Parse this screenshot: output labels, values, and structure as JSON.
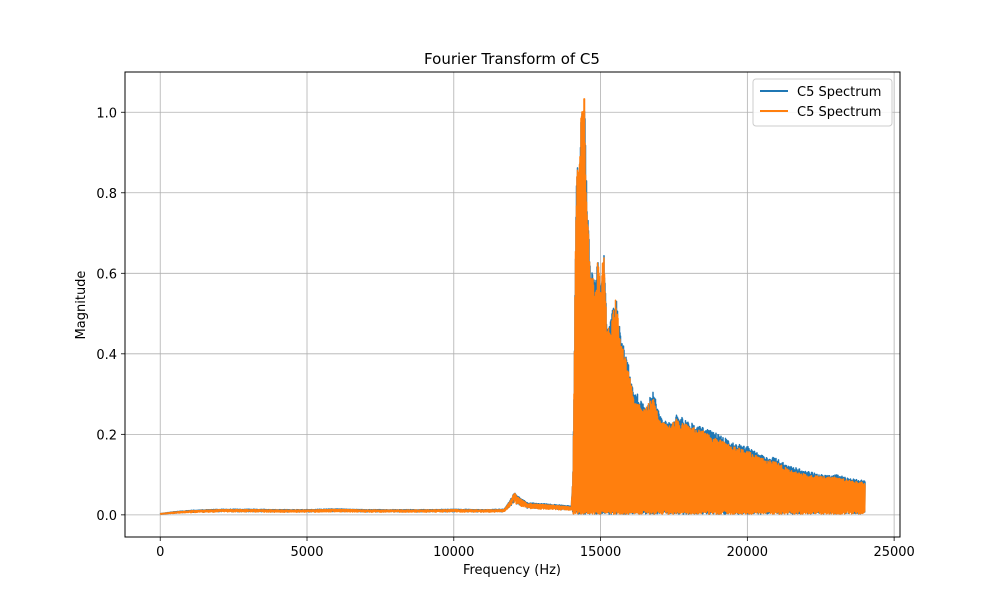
{
  "chart_data": {
    "type": "line",
    "title": "Fourier Transform of C5",
    "xlabel": "Frequency (Hz)",
    "ylabel": "Magnitude",
    "xlim": [
      -1200,
      25200
    ],
    "ylim": [
      -0.055,
      1.1
    ],
    "xticks": [
      0,
      5000,
      10000,
      15000,
      20000,
      25000
    ],
    "xtick_labels": [
      "0",
      "5000",
      "10000",
      "15000",
      "20000",
      "25000"
    ],
    "yticks": [
      0.0,
      0.2,
      0.4,
      0.6,
      0.8,
      1.0
    ],
    "ytick_labels": [
      "0.0",
      "0.2",
      "0.4",
      "0.6",
      "0.8",
      "1.0"
    ],
    "grid": true,
    "legend_position": "top-right",
    "series": [
      {
        "name": "C5 Spectrum",
        "color": "#1f77b4",
        "envelope": [
          [
            0,
            0.003
          ],
          [
            500,
            0.008
          ],
          [
            1000,
            0.011
          ],
          [
            2000,
            0.014
          ],
          [
            3000,
            0.014
          ],
          [
            4000,
            0.013
          ],
          [
            5000,
            0.013
          ],
          [
            6000,
            0.015
          ],
          [
            7000,
            0.013
          ],
          [
            8000,
            0.013
          ],
          [
            9000,
            0.013
          ],
          [
            10000,
            0.014
          ],
          [
            11000,
            0.013
          ],
          [
            11700,
            0.014
          ],
          [
            11900,
            0.035
          ],
          [
            12050,
            0.055
          ],
          [
            12200,
            0.045
          ],
          [
            12500,
            0.03
          ],
          [
            13000,
            0.028
          ],
          [
            13500,
            0.025
          ],
          [
            14000,
            0.022
          ],
          [
            14050,
            0.1
          ],
          [
            14100,
            0.4
          ],
          [
            14150,
            0.8
          ],
          [
            14200,
            0.91
          ],
          [
            14250,
            0.85
          ],
          [
            14350,
            1.045
          ],
          [
            14450,
            1.04
          ],
          [
            14500,
            0.86
          ],
          [
            14550,
            0.76
          ],
          [
            14650,
            0.62
          ],
          [
            14800,
            0.58
          ],
          [
            14900,
            0.65
          ],
          [
            15000,
            0.58
          ],
          [
            15100,
            0.66
          ],
          [
            15200,
            0.49
          ],
          [
            15300,
            0.47
          ],
          [
            15500,
            0.55
          ],
          [
            15700,
            0.44
          ],
          [
            15900,
            0.39
          ],
          [
            16100,
            0.31
          ],
          [
            16300,
            0.3
          ],
          [
            16500,
            0.27
          ],
          [
            16800,
            0.31
          ],
          [
            17000,
            0.25
          ],
          [
            17300,
            0.23
          ],
          [
            17600,
            0.25
          ],
          [
            18000,
            0.23
          ],
          [
            18500,
            0.22
          ],
          [
            19000,
            0.2
          ],
          [
            19500,
            0.18
          ],
          [
            20000,
            0.17
          ],
          [
            20500,
            0.15
          ],
          [
            21000,
            0.14
          ],
          [
            21500,
            0.12
          ],
          [
            22000,
            0.11
          ],
          [
            22500,
            0.1
          ],
          [
            23000,
            0.1
          ],
          [
            23500,
            0.09
          ],
          [
            24000,
            0.085
          ]
        ]
      },
      {
        "name": "C5 Spectrum",
        "color": "#ff7f0e",
        "envelope": [
          [
            0,
            0.003
          ],
          [
            500,
            0.007
          ],
          [
            1000,
            0.01
          ],
          [
            2000,
            0.013
          ],
          [
            3000,
            0.013
          ],
          [
            4000,
            0.012
          ],
          [
            5000,
            0.012
          ],
          [
            6000,
            0.014
          ],
          [
            7000,
            0.012
          ],
          [
            8000,
            0.012
          ],
          [
            9000,
            0.012
          ],
          [
            10000,
            0.013
          ],
          [
            11000,
            0.012
          ],
          [
            11700,
            0.013
          ],
          [
            11900,
            0.033
          ],
          [
            12050,
            0.055
          ],
          [
            12200,
            0.043
          ],
          [
            12500,
            0.028
          ],
          [
            13000,
            0.026
          ],
          [
            13500,
            0.023
          ],
          [
            14000,
            0.02
          ],
          [
            14050,
            0.1
          ],
          [
            14100,
            0.4
          ],
          [
            14150,
            0.8
          ],
          [
            14200,
            0.91
          ],
          [
            14250,
            0.84
          ],
          [
            14350,
            1.045
          ],
          [
            14450,
            1.04
          ],
          [
            14500,
            0.84
          ],
          [
            14550,
            0.74
          ],
          [
            14650,
            0.61
          ],
          [
            14800,
            0.57
          ],
          [
            14900,
            0.64
          ],
          [
            15000,
            0.57
          ],
          [
            15100,
            0.67
          ],
          [
            15200,
            0.48
          ],
          [
            15300,
            0.46
          ],
          [
            15500,
            0.54
          ],
          [
            15700,
            0.43
          ],
          [
            15900,
            0.38
          ],
          [
            16100,
            0.3
          ],
          [
            16300,
            0.29
          ],
          [
            16500,
            0.26
          ],
          [
            16800,
            0.3
          ],
          [
            17000,
            0.24
          ],
          [
            17300,
            0.22
          ],
          [
            17600,
            0.24
          ],
          [
            18000,
            0.22
          ],
          [
            18500,
            0.21
          ],
          [
            19000,
            0.19
          ],
          [
            19500,
            0.17
          ],
          [
            20000,
            0.16
          ],
          [
            20500,
            0.14
          ],
          [
            21000,
            0.13
          ],
          [
            21500,
            0.11
          ],
          [
            22000,
            0.1
          ],
          [
            22500,
            0.095
          ],
          [
            23000,
            0.095
          ],
          [
            23500,
            0.085
          ],
          [
            24000,
            0.08
          ]
        ]
      }
    ]
  }
}
